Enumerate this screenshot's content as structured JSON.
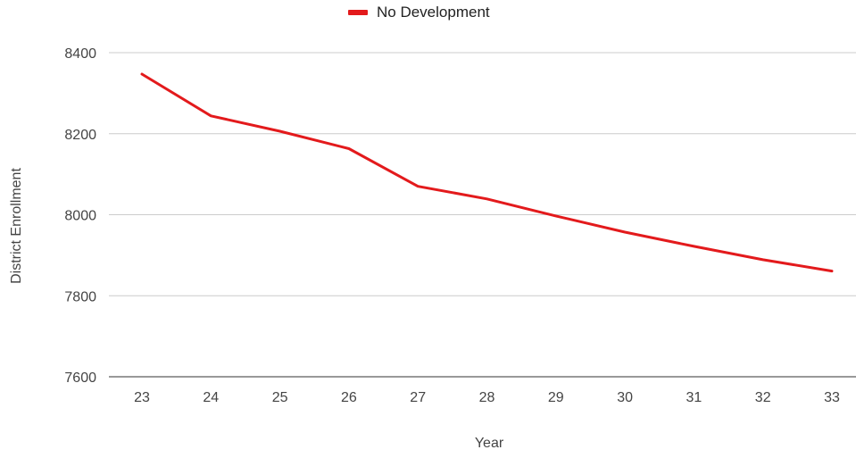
{
  "chart_data": {
    "type": "line",
    "categories": [
      "23",
      "24",
      "25",
      "26",
      "27",
      "28",
      "29",
      "30",
      "31",
      "32",
      "33"
    ],
    "series": [
      {
        "name": "No Development",
        "color": "#e31a1c",
        "values": [
          8347,
          8244,
          8206,
          8163,
          8070,
          8039,
          7997,
          7957,
          7922,
          7889,
          7861
        ]
      }
    ],
    "y_ticks": [
      "7600",
      "7800",
      "8000",
      "8200",
      "8400"
    ],
    "xlabel": "Year",
    "ylabel": "District Enrollment",
    "ylim": [
      7600,
      8400
    ],
    "grid": true,
    "legend_position": "top"
  }
}
